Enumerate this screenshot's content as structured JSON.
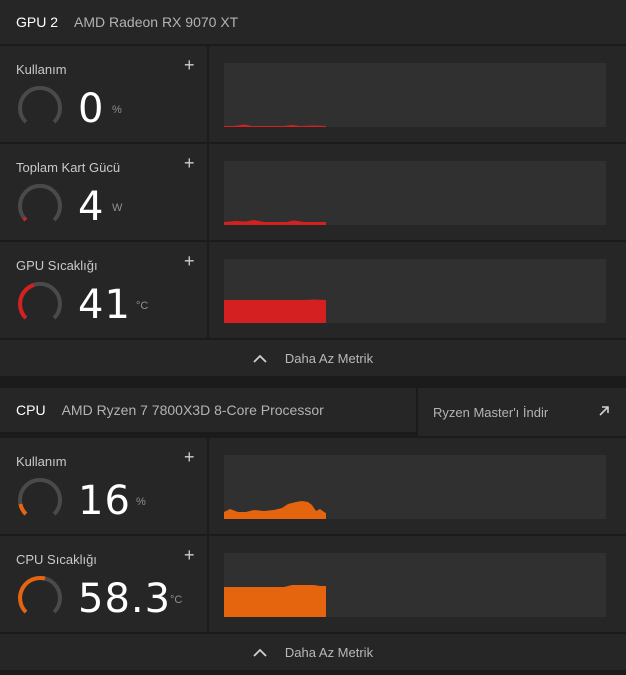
{
  "gpu": {
    "tag": "GPU 2",
    "name": "AMD Radeon RX 9070 XT",
    "metrics": [
      {
        "label": "Kullanım",
        "value": "0",
        "unit": "%",
        "gauge_fraction": 0.0
      },
      {
        "label": "Toplam Kart Gücü",
        "value": "4",
        "unit": "W",
        "gauge_fraction": 0.02
      },
      {
        "label": "GPU Sıcaklığı",
        "value": "41",
        "unit": "°C",
        "gauge_fraction": 0.41
      }
    ],
    "less_label": "Daha Az Metrik"
  },
  "cpu": {
    "tag": "CPU",
    "name": "AMD Ryzen 7 7800X3D 8-Core Processor",
    "ryzen_master_label": "Ryzen Master'ı İndir",
    "metrics": [
      {
        "label": "Kullanım",
        "value": "16",
        "unit": "%",
        "gauge_fraction": 0.16
      },
      {
        "label": "CPU Sıcaklığı",
        "value": "58.3",
        "unit": "°C",
        "gauge_fraction": 0.58
      }
    ],
    "less_label": "Daha Az Metrik"
  },
  "colors": {
    "gpu_accent": "#d42020",
    "cpu_accent": "#e5650e",
    "gauge_track": "#4a4a4a"
  },
  "icons": {
    "add": "plus-icon",
    "collapse": "chevron-up-icon",
    "external": "arrow-up-right-icon"
  }
}
